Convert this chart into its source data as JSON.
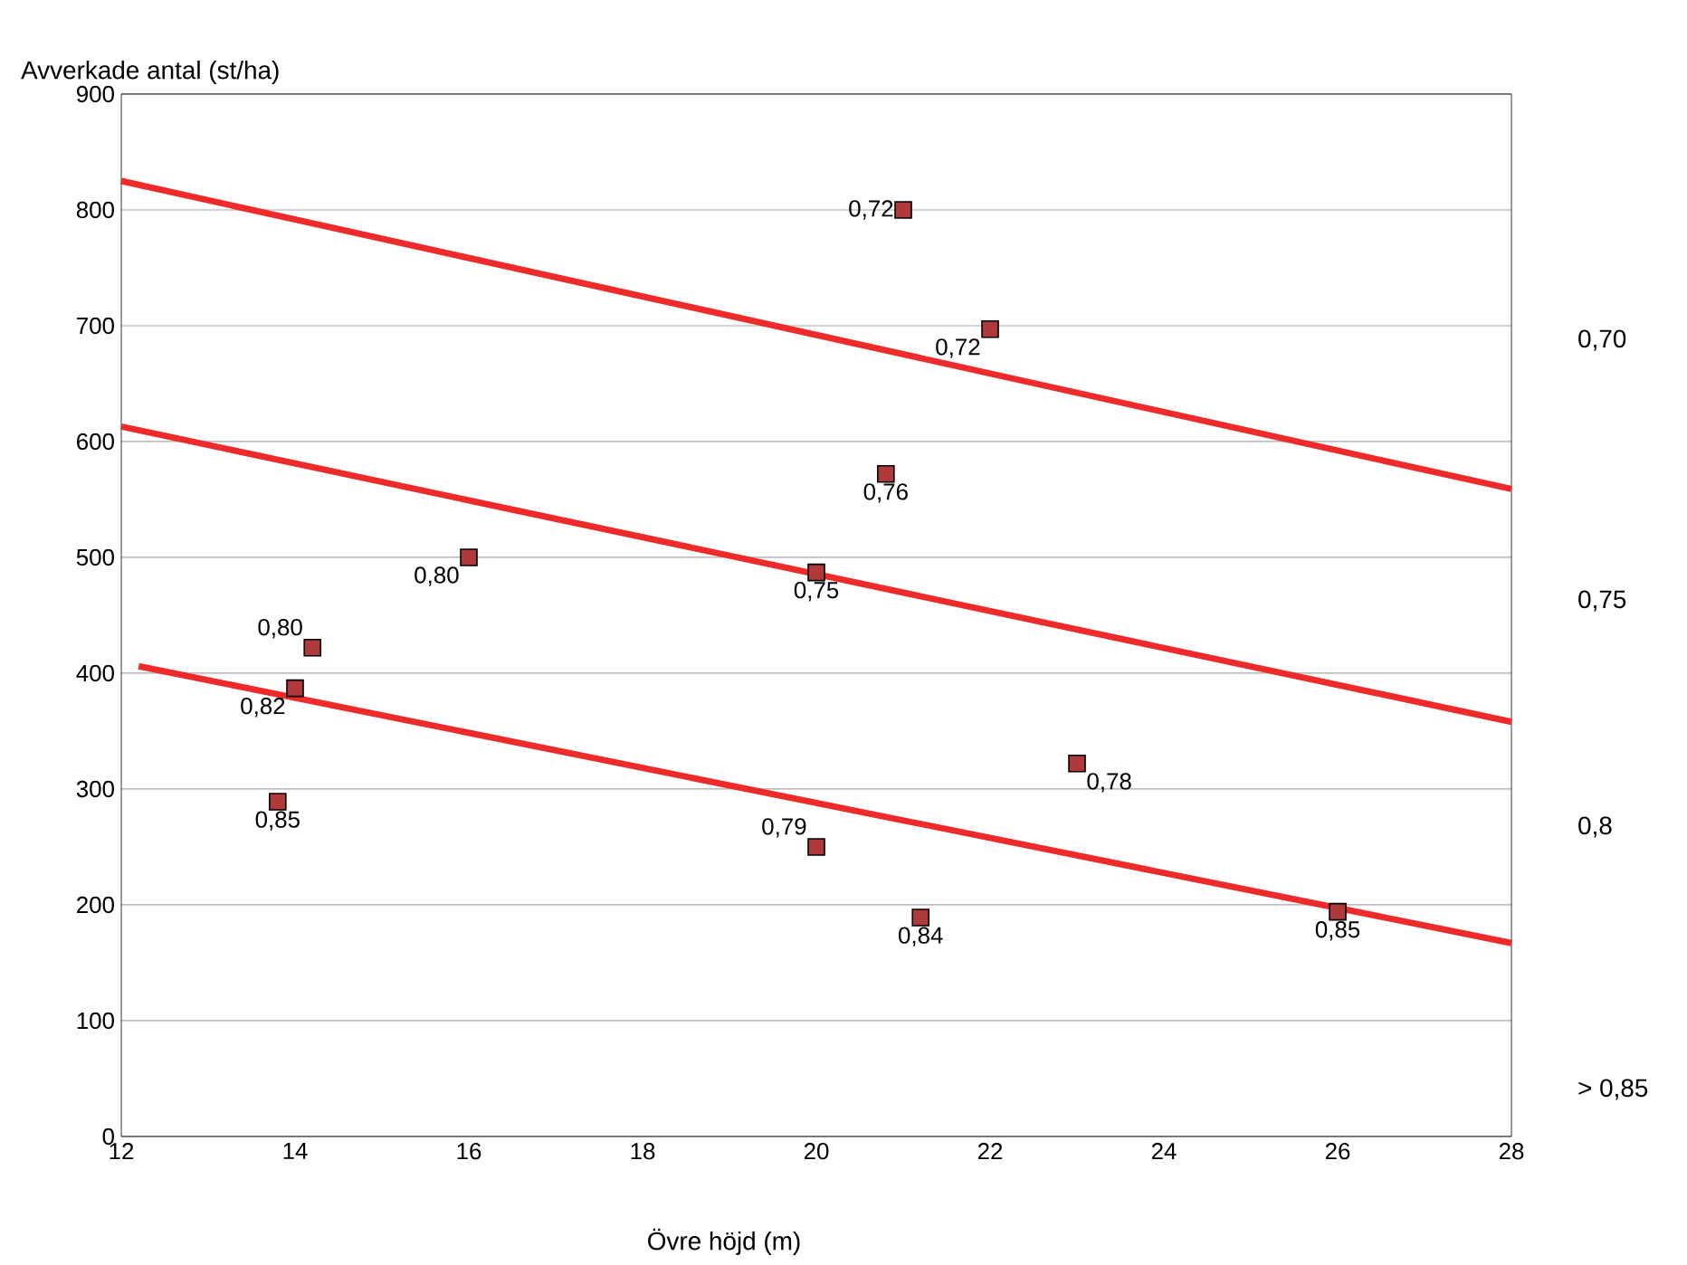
{
  "chart_data": {
    "type": "scatter",
    "xlabel": "Övre  höjd (m)",
    "ylabel": "Avverkade antal (st/ha)",
    "xlim": [
      12,
      28
    ],
    "xticks": [
      12,
      14,
      16,
      18,
      20,
      22,
      24,
      26,
      28
    ],
    "ylim": [
      0,
      900
    ],
    "yticks": [
      0,
      100,
      200,
      300,
      400,
      500,
      600,
      700,
      800,
      900
    ],
    "grid": "y",
    "marker": "square",
    "series": [
      {
        "type": "line",
        "color": "#ee2a2a",
        "marker": "none",
        "x": [
          12,
          28
        ],
        "values": [
          825,
          559
        ]
      },
      {
        "type": "line",
        "color": "#ee2a2a",
        "marker": "none",
        "x": [
          12,
          28
        ],
        "values": [
          613,
          358
        ]
      },
      {
        "type": "line",
        "color": "#ee2a2a",
        "marker": "none",
        "x": [
          12.2,
          28
        ],
        "values": [
          406,
          167
        ]
      },
      {
        "color": "#b03a3a",
        "x": [
          21.0,
          22.0,
          20.8,
          16.0,
          20.0,
          14.2,
          14.0,
          13.8,
          20.0,
          21.2,
          23.0,
          26.0
        ],
        "values": [
          800,
          697,
          572,
          500,
          487,
          422,
          387,
          289,
          250,
          189,
          322,
          194
        ]
      }
    ],
    "annotations": [
      "0,70",
      "0,75",
      "0,8",
      "> 0,85",
      {
        "text": "0,72",
        "x": 21.0,
        "y": 800
      },
      {
        "text": "0,72",
        "x": 22.0,
        "y": 697
      },
      {
        "text": "0,76",
        "x": 20.8,
        "y": 572
      },
      {
        "text": "0,80",
        "x": 16.0,
        "y": 500
      },
      {
        "text": "0,75",
        "x": 20.0,
        "y": 487
      },
      {
        "text": "0,80",
        "x": 14.2,
        "y": 422
      },
      {
        "text": "0,82",
        "x": 14.0,
        "y": 387
      },
      {
        "text": "0,85",
        "x": 13.8,
        "y": 289
      },
      {
        "text": "0,79",
        "x": 20.0,
        "y": 250
      },
      {
        "text": "0,84",
        "x": 21.2,
        "y": 189
      },
      {
        "text": "0,78",
        "x": 23.0,
        "y": 322
      },
      {
        "text": "0,85",
        "x": 26.0,
        "y": 194
      }
    ]
  }
}
